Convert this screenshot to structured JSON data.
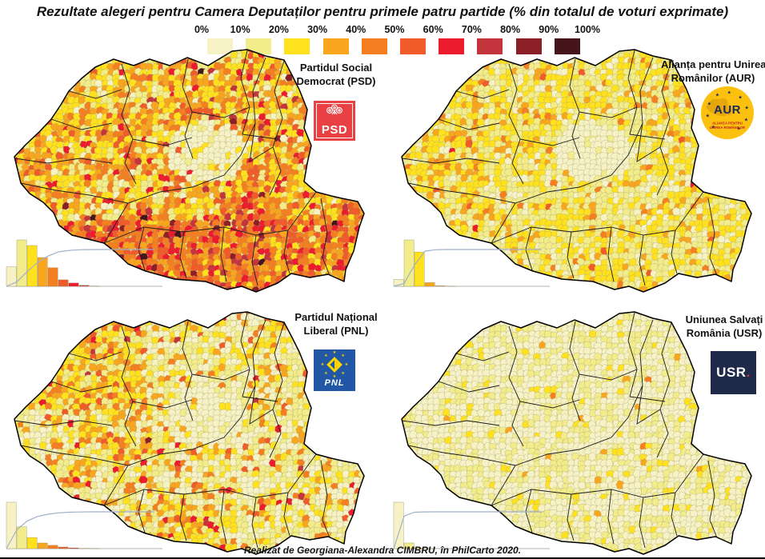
{
  "title": "Rezultate alegeri pentru Camera Deputaților pentru primele patru partide (% din totalul de voturi exprimate)",
  "legend": {
    "ticks": [
      "0%",
      "10%",
      "20%",
      "30%",
      "40%",
      "50%",
      "60%",
      "70%",
      "80%",
      "90%",
      "100%"
    ],
    "colors": [
      "#F6F2C6",
      "#F2EC8B",
      "#FFE11E",
      "#F9A51D",
      "#F57F20",
      "#F15A29",
      "#EC1B2E",
      "#C4343D",
      "#8C1E27",
      "#46151C"
    ]
  },
  "maps": [
    {
      "id": "psd",
      "name": "Partidul Social Democrat (PSD)",
      "label_lines": [
        "Partidul Social",
        "Democrat (PSD)"
      ],
      "logo_text": "PSD",
      "brand_color": "#E94043",
      "histogram": [
        0.42,
        1.0,
        0.88,
        0.62,
        0.4,
        0.14,
        0.07,
        0.02,
        0.005,
        0
      ],
      "color_distribution": [
        0.04,
        0.16,
        0.28,
        0.23,
        0.16,
        0.07,
        0.04,
        0.015,
        0.004,
        0.001
      ]
    },
    {
      "id": "aur",
      "name": "Alianța pentru Unirea Românilor (AUR)",
      "label_lines": [
        "Alianța pentru Unirea",
        "Românilor (AUR)"
      ],
      "logo_text": "AUR",
      "logo_subtext": [
        "ALIANȚA PENTRU",
        "UNIREA ROMÂNILOR"
      ],
      "brand_color": "#FBC10E",
      "histogram": [
        0.15,
        1.0,
        0.74,
        0.08,
        0.01,
        0.002,
        0,
        0,
        0,
        0
      ],
      "color_distribution": [
        0.13,
        0.44,
        0.32,
        0.09,
        0.015,
        0.004,
        0.001,
        0,
        0,
        0
      ]
    },
    {
      "id": "pnl",
      "name": "Partidul Național Liberal (PNL)",
      "label_lines": [
        "Partidul Național",
        "Liberal (PNL)"
      ],
      "logo_text": "PNL",
      "brand_color": "#2257A5",
      "histogram": [
        1.0,
        0.47,
        0.24,
        0.12,
        0.07,
        0.035,
        0.015,
        0.005,
        0.002,
        0
      ],
      "color_distribution": [
        0.32,
        0.34,
        0.16,
        0.09,
        0.05,
        0.025,
        0.012,
        0.003,
        0,
        0
      ]
    },
    {
      "id": "usr",
      "name": "Uniunea Salvați România (USR)",
      "label_lines": [
        "Uniunea Salvați",
        "România (USR)"
      ],
      "logo_text": "USR",
      "brand_color": "#1F2A4B",
      "histogram": [
        1.0,
        0.12,
        0.01,
        0.002,
        0,
        0,
        0,
        0,
        0,
        0
      ],
      "color_distribution": [
        0.6,
        0.34,
        0.05,
        0.008,
        0.002,
        0,
        0,
        0,
        0,
        0
      ]
    }
  ],
  "footer": "Realizat de Georgiana-Alexandra CIMBRU, în PhilCarto 2020."
}
